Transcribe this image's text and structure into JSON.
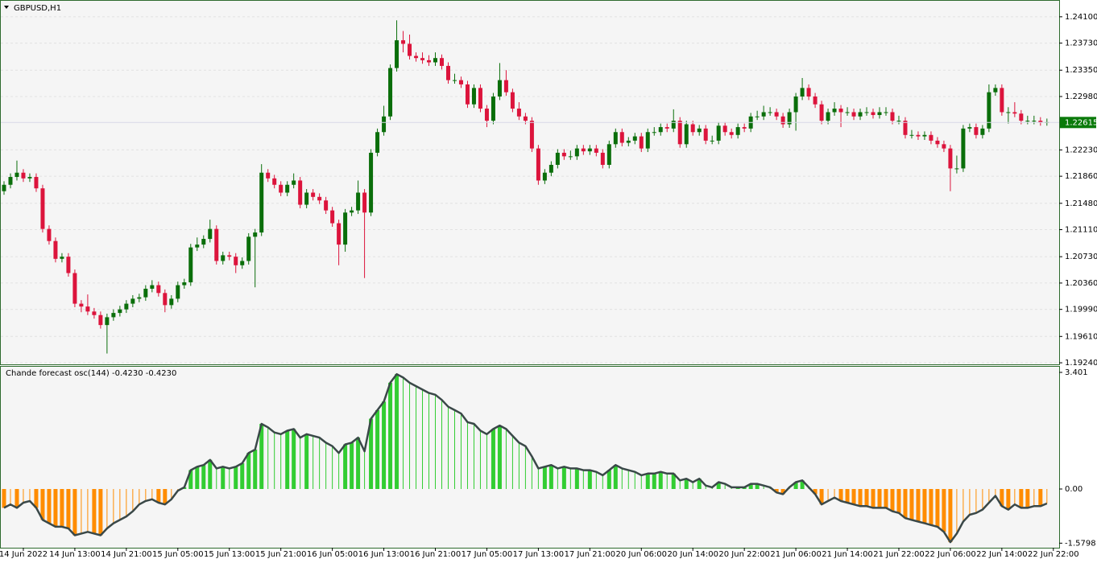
{
  "chart_data": [
    {
      "type": "candlestick",
      "title": "GBPUSD,H1",
      "bull_color": "#0a6e0a",
      "bear_color": "#dc143c",
      "grid": true,
      "xlim": [
        -0.5,
        163.9
      ],
      "ylim": [
        1.19218,
        1.24313
      ],
      "yticks": [
        {
          "value": 1.241,
          "label": "1.24100"
        },
        {
          "value": 1.2373,
          "label": "1.23730"
        },
        {
          "value": 1.2335,
          "label": "1.23350"
        },
        {
          "value": 1.2298,
          "label": "1.22980"
        },
        {
          "value": 1.2223,
          "label": "1.22230"
        },
        {
          "value": 1.2186,
          "label": "1.21860"
        },
        {
          "value": 1.2148,
          "label": "1.21480"
        },
        {
          "value": 1.2111,
          "label": "1.21110"
        },
        {
          "value": 1.2073,
          "label": "1.20730"
        },
        {
          "value": 1.2036,
          "label": "1.20360"
        },
        {
          "value": 1.1999,
          "label": "1.19990"
        },
        {
          "value": 1.1961,
          "label": "1.19610"
        },
        {
          "value": 1.1924,
          "label": "1.19240"
        }
      ],
      "last_price": {
        "value": 1.22615,
        "label": "1.22615"
      },
      "last_price_color": "#0a7a0a",
      "open": [
        1.2165,
        1.2174,
        1.2185,
        1.2191,
        1.2183,
        1.2185,
        1.2169,
        1.2112,
        1.2095,
        1.207,
        1.2073,
        1.205,
        1.2007,
        1.2003,
        1.1996,
        1.1991,
        1.1977,
        1.1988,
        1.1994,
        1.1999,
        1.2007,
        1.2014,
        1.2016,
        1.2028,
        1.2033,
        1.2022,
        1.2005,
        1.2014,
        1.2033,
        1.2037,
        1.2086,
        1.209,
        1.2098,
        1.2112,
        1.2067,
        1.2075,
        1.2073,
        1.2061,
        1.2067,
        1.2101,
        1.2107,
        1.2191,
        1.2183,
        1.2174,
        1.2163,
        1.2174,
        1.218,
        1.2146,
        1.2163,
        1.2157,
        1.2152,
        1.2138,
        1.212,
        1.209,
        1.2135,
        1.2138,
        1.2163,
        1.2135,
        1.2219,
        1.2248,
        1.227,
        1.2338,
        1.2377,
        1.2372,
        1.2355,
        1.2352,
        1.2349,
        1.2346,
        1.2352,
        1.2341,
        1.2321,
        1.2321,
        1.2315,
        1.2287,
        1.231,
        1.2281,
        1.2264,
        1.2298,
        1.2321,
        1.2304,
        1.2281,
        1.227,
        1.2264,
        1.2225,
        1.218,
        1.2191,
        1.2202,
        1.2219,
        1.2214,
        1.2214,
        1.2225,
        1.2221,
        1.2225,
        1.2219,
        1.2202,
        1.2231,
        1.2248,
        1.2233,
        1.2236,
        1.2242,
        1.2225,
        1.2248,
        1.2248,
        1.2255,
        1.2253,
        1.2264,
        1.2231,
        1.2259,
        1.2248,
        1.2253,
        1.2236,
        1.2236,
        1.2257,
        1.2248,
        1.2244,
        1.2255,
        1.2253,
        1.227,
        1.227,
        1.2276,
        1.2276,
        1.227,
        1.2259,
        1.2276,
        1.2298,
        1.231,
        1.2298,
        1.2287,
        1.2264,
        1.2276,
        1.2281,
        1.2276,
        1.2276,
        1.227,
        1.2276,
        1.2276,
        1.2272,
        1.2276,
        1.2276,
        1.2264,
        1.2264,
        1.2244,
        1.2244,
        1.2242,
        1.2244,
        1.2236,
        1.2231,
        1.2225,
        1.2197,
        1.2197,
        1.2253,
        1.2255,
        1.2244,
        1.2253,
        1.2304,
        1.231,
        1.2276,
        1.2276,
        1.2274,
        1.2264,
        1.2264,
        1.2264,
        1.2262
      ],
      "high": [
        1.2179,
        1.219,
        1.2208,
        1.2196,
        1.219,
        1.219,
        1.2174,
        1.2117,
        1.21,
        1.2078,
        1.2078,
        1.2055,
        1.2012,
        1.202,
        1.2001,
        1.1996,
        1.1993,
        1.1999,
        1.2004,
        1.2012,
        1.2019,
        1.2021,
        1.2033,
        1.204,
        1.2038,
        1.2027,
        1.2019,
        1.2038,
        1.2042,
        1.2091,
        1.21,
        1.2103,
        1.2125,
        1.2117,
        1.208,
        1.208,
        1.2078,
        1.2072,
        1.2106,
        1.2112,
        1.2203,
        1.2196,
        1.2188,
        1.2179,
        1.2179,
        1.219,
        1.2185,
        1.2168,
        1.2168,
        1.2162,
        1.2157,
        1.2143,
        1.2125,
        1.214,
        1.2143,
        1.218,
        1.2168,
        1.2224,
        1.2253,
        1.2285,
        1.2343,
        1.2405,
        1.239,
        1.2385,
        1.236,
        1.236,
        1.2356,
        1.236,
        1.2357,
        1.2346,
        1.233,
        1.2326,
        1.232,
        1.2315,
        1.2315,
        1.2286,
        1.2303,
        1.2345,
        1.2335,
        1.2309,
        1.229,
        1.2275,
        1.2269,
        1.223,
        1.2196,
        1.2207,
        1.2224,
        1.2224,
        1.2222,
        1.223,
        1.223,
        1.223,
        1.223,
        1.2224,
        1.2236,
        1.2253,
        1.2253,
        1.2241,
        1.2247,
        1.2247,
        1.2253,
        1.2255,
        1.226,
        1.226,
        1.228,
        1.2269,
        1.2264,
        1.2264,
        1.2258,
        1.2258,
        1.2243,
        1.2262,
        1.2262,
        1.2253,
        1.226,
        1.226,
        1.2275,
        1.2278,
        1.2285,
        1.2283,
        1.2281,
        1.2275,
        1.2281,
        1.2303,
        1.2324,
        1.2315,
        1.2303,
        1.2292,
        1.2281,
        1.229,
        1.2286,
        1.2283,
        1.2281,
        1.2281,
        1.2283,
        1.2281,
        1.2283,
        1.2283,
        1.2281,
        1.2271,
        1.2269,
        1.2251,
        1.2249,
        1.2249,
        1.2249,
        1.2241,
        1.2236,
        1.223,
        1.2215,
        1.2258,
        1.226,
        1.226,
        1.2258,
        1.2315,
        1.2315,
        1.2315,
        1.2283,
        1.229,
        1.2279,
        1.2271,
        1.2271,
        1.2269,
        1.2267
      ],
      "low": [
        1.216,
        1.2169,
        1.218,
        1.2178,
        1.2178,
        1.2164,
        1.2107,
        1.209,
        1.2065,
        1.2065,
        1.2045,
        1.2002,
        1.1995,
        1.1991,
        1.1986,
        1.1972,
        1.1937,
        1.1983,
        1.1989,
        1.1994,
        1.2002,
        1.2009,
        1.2011,
        1.2023,
        1.2017,
        1.1995,
        1.2,
        1.2009,
        1.2028,
        1.2032,
        1.2081,
        1.2085,
        1.2093,
        1.2062,
        1.2062,
        1.2068,
        1.205,
        1.2056,
        1.2062,
        1.203,
        1.2102,
        1.2178,
        1.2169,
        1.2158,
        1.2158,
        1.2169,
        1.2141,
        1.2141,
        1.2152,
        1.2147,
        1.2133,
        1.2115,
        1.2061,
        1.208,
        1.213,
        1.2133,
        1.2043,
        1.213,
        1.2214,
        1.2243,
        1.2265,
        1.2333,
        1.236,
        1.235,
        1.2347,
        1.2344,
        1.2341,
        1.2341,
        1.2336,
        1.2316,
        1.2316,
        1.231,
        1.2282,
        1.2282,
        1.2276,
        1.2255,
        1.2259,
        1.2293,
        1.2299,
        1.2276,
        1.2265,
        1.2259,
        1.222,
        1.2174,
        1.2175,
        1.2186,
        1.2197,
        1.2209,
        1.2209,
        1.2209,
        1.2216,
        1.2216,
        1.2214,
        1.2197,
        1.2197,
        1.2226,
        1.2228,
        1.2228,
        1.2231,
        1.222,
        1.222,
        1.2243,
        1.2243,
        1.2248,
        1.2248,
        1.2226,
        1.2226,
        1.2243,
        1.2243,
        1.2231,
        1.2231,
        1.2231,
        1.2243,
        1.2239,
        1.2239,
        1.2248,
        1.2248,
        1.2265,
        1.2265,
        1.2271,
        1.2265,
        1.2254,
        1.2254,
        1.225,
        1.2293,
        1.2293,
        1.2282,
        1.2259,
        1.2259,
        1.2271,
        1.2255,
        1.2271,
        1.2265,
        1.2265,
        1.2271,
        1.2267,
        1.2267,
        1.2271,
        1.2259,
        1.2259,
        1.2239,
        1.2239,
        1.2237,
        1.2237,
        1.2231,
        1.2226,
        1.222,
        1.2165,
        1.219,
        1.2192,
        1.2248,
        1.2239,
        1.2239,
        1.2248,
        1.2299,
        1.2271,
        1.226,
        1.2269,
        1.2259,
        1.2259,
        1.2259,
        1.2257,
        1.2257
      ],
      "close": [
        1.2174,
        1.2185,
        1.2191,
        1.2183,
        1.2185,
        1.2169,
        1.2112,
        1.2095,
        1.207,
        1.2073,
        1.205,
        1.2007,
        1.2003,
        1.1996,
        1.1991,
        1.1977,
        1.1988,
        1.1994,
        1.1999,
        1.2007,
        1.2014,
        1.2016,
        1.2028,
        1.2033,
        1.2022,
        1.2005,
        1.2014,
        1.2033,
        1.2037,
        1.2086,
        1.209,
        1.2098,
        1.2112,
        1.2067,
        1.2075,
        1.2073,
        1.2061,
        1.2067,
        1.2101,
        1.2107,
        1.2191,
        1.2183,
        1.2174,
        1.2163,
        1.2174,
        1.218,
        1.2146,
        1.2163,
        1.2157,
        1.2152,
        1.2138,
        1.212,
        1.209,
        1.2135,
        1.2138,
        1.2163,
        1.2135,
        1.2219,
        1.2248,
        1.227,
        1.2338,
        1.2377,
        1.2372,
        1.2355,
        1.2352,
        1.2349,
        1.2346,
        1.2352,
        1.2341,
        1.2321,
        1.2321,
        1.2315,
        1.2287,
        1.231,
        1.2281,
        1.2264,
        1.2298,
        1.2321,
        1.2304,
        1.2281,
        1.227,
        1.2264,
        1.2225,
        1.218,
        1.2191,
        1.2202,
        1.2219,
        1.2214,
        1.2214,
        1.2225,
        1.2221,
        1.2225,
        1.2219,
        1.2202,
        1.2231,
        1.2248,
        1.2233,
        1.2236,
        1.2242,
        1.2225,
        1.2248,
        1.2248,
        1.2255,
        1.2253,
        1.2264,
        1.2231,
        1.2259,
        1.2248,
        1.2253,
        1.2236,
        1.2236,
        1.2257,
        1.2248,
        1.2244,
        1.2255,
        1.2253,
        1.227,
        1.227,
        1.2276,
        1.2276,
        1.227,
        1.2259,
        1.2276,
        1.2298,
        1.231,
        1.2298,
        1.2287,
        1.2264,
        1.2276,
        1.2281,
        1.2276,
        1.2276,
        1.227,
        1.2276,
        1.2276,
        1.2272,
        1.2276,
        1.2276,
        1.2264,
        1.2264,
        1.2244,
        1.2244,
        1.2242,
        1.2244,
        1.2236,
        1.2231,
        1.2225,
        1.2197,
        1.2197,
        1.2253,
        1.2255,
        1.2244,
        1.2253,
        1.2304,
        1.231,
        1.2276,
        1.2276,
        1.2274,
        1.2264,
        1.2264,
        1.2264,
        1.2262,
        1.2262
      ]
    },
    {
      "type": "histogram-line",
      "title": "Chande forecast osc(144) -0.4230 -0.4230",
      "positive_color": "#32cd32",
      "negative_color": "#ff8c00",
      "line_color": "#3a4848",
      "xlim": [
        -0.5,
        163.9
      ],
      "ylim": [
        -1.689,
        3.542
      ],
      "yticks": [
        3.401,
        {
          "value": 0,
          "label": "0.00"
        },
        -1.5798
      ],
      "xticks": [
        {
          "value": 3,
          "label": "14 Jun 2022"
        },
        {
          "value": 11,
          "label": "14 Jun 13:00"
        },
        {
          "value": 19,
          "label": "14 Jun 21:00"
        },
        {
          "value": 27,
          "label": "15 Jun 05:00"
        },
        {
          "value": 35,
          "label": "15 Jun 13:00"
        },
        {
          "value": 43,
          "label": "15 Jun 21:00"
        },
        {
          "value": 51,
          "label": "16 Jun 05:00"
        },
        {
          "value": 59,
          "label": "16 Jun 13:00"
        },
        {
          "value": 67,
          "label": "16 Jun 21:00"
        },
        {
          "value": 75,
          "label": "17 Jun 05:00"
        },
        {
          "value": 83,
          "label": "17 Jun 13:00"
        },
        {
          "value": 91,
          "label": "17 Jun 21:00"
        },
        {
          "value": 99,
          "label": "20 Jun 06:00"
        },
        {
          "value": 107,
          "label": "20 Jun 14:00"
        },
        {
          "value": 115,
          "label": "20 Jun 22:00"
        },
        {
          "value": 123,
          "label": "21 Jun 06:00"
        },
        {
          "value": 131,
          "label": "21 Jun 14:00"
        },
        {
          "value": 139,
          "label": "21 Jun 22:00"
        },
        {
          "value": 147,
          "label": "22 Jun 06:00"
        },
        {
          "value": 155,
          "label": "22 Jun 14:00"
        },
        {
          "value": 163,
          "label": "22 Jun 22:00"
        }
      ],
      "values": [
        -0.55,
        -0.45,
        -0.55,
        -0.4,
        -0.35,
        -0.55,
        -0.9,
        -1.0,
        -1.1,
        -1.1,
        -1.15,
        -1.35,
        -1.3,
        -1.25,
        -1.3,
        -1.35,
        -1.15,
        -1.0,
        -0.9,
        -0.8,
        -0.65,
        -0.45,
        -0.35,
        -0.3,
        -0.4,
        -0.45,
        -0.3,
        -0.05,
        0.05,
        0.55,
        0.65,
        0.7,
        0.85,
        0.6,
        0.65,
        0.6,
        0.65,
        0.75,
        1.05,
        1.15,
        1.9,
        1.8,
        1.65,
        1.6,
        1.7,
        1.75,
        1.5,
        1.6,
        1.55,
        1.5,
        1.35,
        1.25,
        1.05,
        1.3,
        1.35,
        1.5,
        1.1,
        2.05,
        2.3,
        2.55,
        3.1,
        3.35,
        3.25,
        3.1,
        3.0,
        2.9,
        2.8,
        2.75,
        2.6,
        2.4,
        2.3,
        2.2,
        1.95,
        1.9,
        1.7,
        1.6,
        1.75,
        1.85,
        1.75,
        1.55,
        1.35,
        1.25,
        0.95,
        0.6,
        0.65,
        0.7,
        0.6,
        0.65,
        0.6,
        0.6,
        0.55,
        0.55,
        0.5,
        0.4,
        0.55,
        0.7,
        0.6,
        0.55,
        0.5,
        0.4,
        0.45,
        0.45,
        0.5,
        0.45,
        0.45,
        0.25,
        0.3,
        0.2,
        0.3,
        0.1,
        0.05,
        0.2,
        0.15,
        0.05,
        0.05,
        0.05,
        0.15,
        0.15,
        0.1,
        0.05,
        -0.1,
        -0.15,
        0.05,
        0.2,
        0.25,
        0.05,
        -0.15,
        -0.45,
        -0.35,
        -0.25,
        -0.35,
        -0.4,
        -0.45,
        -0.5,
        -0.5,
        -0.55,
        -0.55,
        -0.55,
        -0.65,
        -0.7,
        -0.85,
        -0.9,
        -0.95,
        -1.0,
        -1.05,
        -1.1,
        -1.25,
        -1.55,
        -1.3,
        -0.95,
        -0.75,
        -0.7,
        -0.6,
        -0.4,
        -0.2,
        -0.5,
        -0.6,
        -0.45,
        -0.55,
        -0.55,
        -0.5,
        -0.5,
        -0.423
      ]
    }
  ]
}
